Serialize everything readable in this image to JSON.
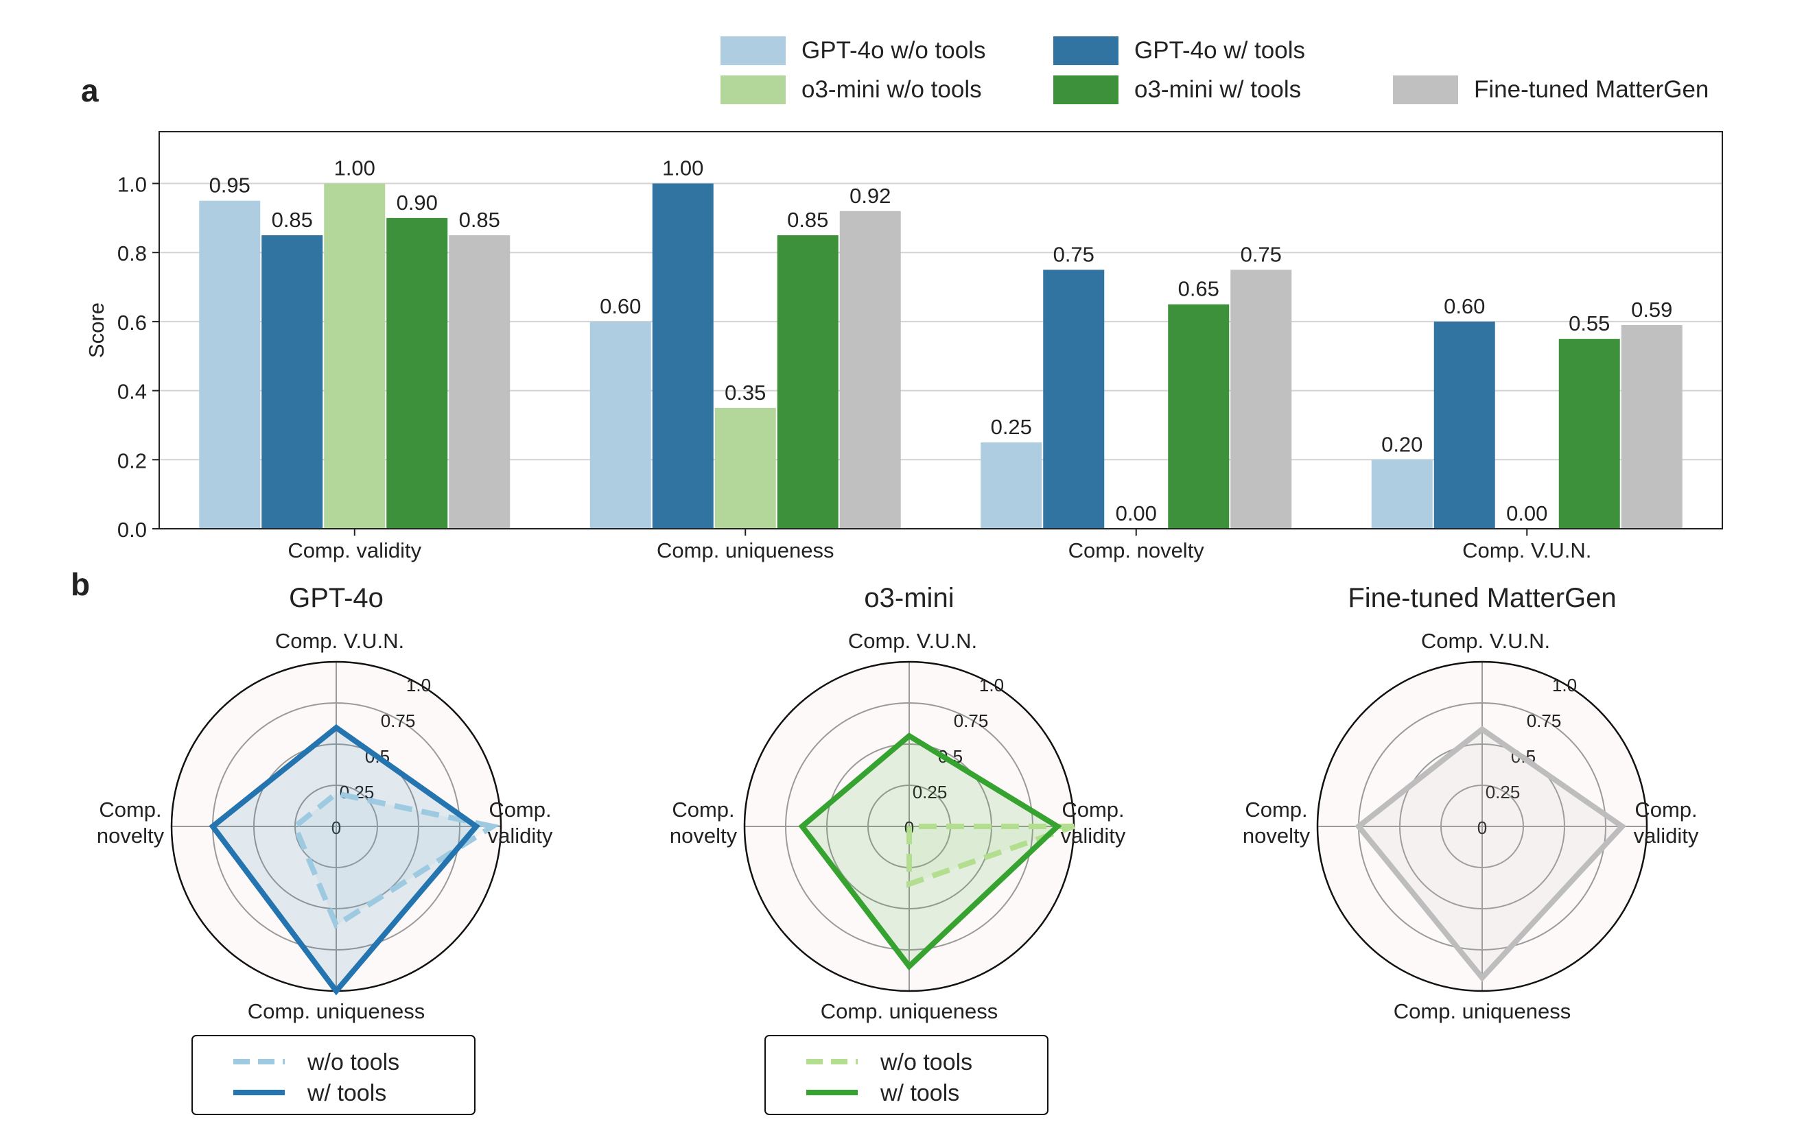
{
  "panel_labels": {
    "a": "a",
    "b": "b"
  },
  "legend_bar": {
    "items": [
      {
        "label": "GPT-4o w/o tools",
        "color": "#aecde1"
      },
      {
        "label": "GPT-4o w/ tools",
        "color": "#3274a1"
      },
      {
        "label": "o3-mini w/o tools",
        "color": "#b3d69a"
      },
      {
        "label": "o3-mini w/ tools",
        "color": "#3d913b"
      },
      {
        "label": "Fine-tuned MatterGen",
        "color": "#c0c0c0"
      }
    ]
  },
  "chart_data": [
    {
      "type": "bar",
      "ylabel": "Score",
      "xlabel": "",
      "ylim": [
        0,
        1.15
      ],
      "yticks": [
        "0.0",
        "0.2",
        "0.4",
        "0.6",
        "0.8",
        "1.0"
      ],
      "grid": true,
      "categories": [
        "Comp. validity",
        "Comp. uniqueness",
        "Comp. novelty",
        "Comp. V.U.N."
      ],
      "series": [
        {
          "name": "GPT-4o w/o tools",
          "color": "#aecde1",
          "values": [
            0.95,
            0.6,
            0.25,
            0.2
          ],
          "labels": [
            "0.95",
            "0.60",
            "0.25",
            "0.20"
          ]
        },
        {
          "name": "GPT-4o w/ tools",
          "color": "#3274a1",
          "values": [
            0.85,
            1.0,
            0.75,
            0.6
          ],
          "labels": [
            "0.85",
            "1.00",
            "0.75",
            "0.60"
          ]
        },
        {
          "name": "o3-mini w/o tools",
          "color": "#b3d69a",
          "values": [
            1.0,
            0.35,
            0.0,
            0.0
          ],
          "labels": [
            "1.00",
            "0.35",
            "0.00",
            "0.00"
          ]
        },
        {
          "name": "o3-mini w/ tools",
          "color": "#3d913b",
          "values": [
            0.9,
            0.85,
            0.65,
            0.55
          ],
          "labels": [
            "0.90",
            "0.85",
            "0.65",
            "0.55"
          ]
        },
        {
          "name": "Fine-tuned MatterGen",
          "color": "#c0c0c0",
          "values": [
            0.85,
            0.92,
            0.75,
            0.59
          ],
          "labels": [
            "0.85",
            "0.92",
            "0.75",
            "0.59"
          ]
        }
      ]
    },
    {
      "type": "radar",
      "title": "GPT-4o",
      "axes": [
        "Comp. validity",
        "Comp. V.U.N.",
        "Comp. novelty",
        "Comp. uniqueness"
      ],
      "axis_labels": [
        [
          "Comp.",
          "validity"
        ],
        [
          "Comp. V.U.N."
        ],
        [
          "Comp.",
          "novelty"
        ],
        [
          "Comp. uniqueness"
        ]
      ],
      "rticks": [
        "0",
        "0.25",
        "0.5",
        "0.75",
        "1.0"
      ],
      "rmax": 1.0,
      "series": [
        {
          "name": "w/o tools",
          "color": "#9ecae1",
          "dashed": true,
          "values": [
            0.95,
            0.2,
            0.25,
            0.6
          ]
        },
        {
          "name": "w/ tools",
          "color": "#2474b0",
          "dashed": false,
          "values": [
            0.85,
            0.6,
            0.75,
            1.0
          ]
        }
      ],
      "legend": [
        "w/o tools",
        "w/ tools"
      ]
    },
    {
      "type": "radar",
      "title": "o3-mini",
      "axes": [
        "Comp. validity",
        "Comp. V.U.N.",
        "Comp. novelty",
        "Comp. uniqueness"
      ],
      "axis_labels": [
        [
          "Comp.",
          "validity"
        ],
        [
          "Comp. V.U.N."
        ],
        [
          "Comp.",
          "novelty"
        ],
        [
          "Comp. uniqueness"
        ]
      ],
      "rticks": [
        "0",
        "0.25",
        "0.5",
        "0.75",
        "1.0"
      ],
      "rmax": 1.0,
      "series": [
        {
          "name": "w/o tools",
          "color": "#b3de8f",
          "dashed": true,
          "values": [
            1.0,
            0.0,
            0.0,
            0.35
          ]
        },
        {
          "name": "w/ tools",
          "color": "#36a22f",
          "dashed": false,
          "values": [
            0.9,
            0.55,
            0.65,
            0.85
          ]
        }
      ],
      "legend": [
        "w/o tools",
        "w/ tools"
      ]
    },
    {
      "type": "radar",
      "title": "Fine-tuned MatterGen",
      "axes": [
        "Comp. validity",
        "Comp. V.U.N.",
        "Comp. novelty",
        "Comp. uniqueness"
      ],
      "axis_labels": [
        [
          "Comp.",
          "validity"
        ],
        [
          "Comp. V.U.N."
        ],
        [
          "Comp.",
          "novelty"
        ],
        [
          "Comp. uniqueness"
        ]
      ],
      "rticks": [
        "0",
        "0.25",
        "0.5",
        "0.75",
        "1.0"
      ],
      "rmax": 1.0,
      "series": [
        {
          "name": "Fine-tuned MatterGen",
          "color": "#bdbdbd",
          "dashed": false,
          "values": [
            0.85,
            0.59,
            0.75,
            0.92
          ]
        }
      ],
      "legend": []
    }
  ]
}
